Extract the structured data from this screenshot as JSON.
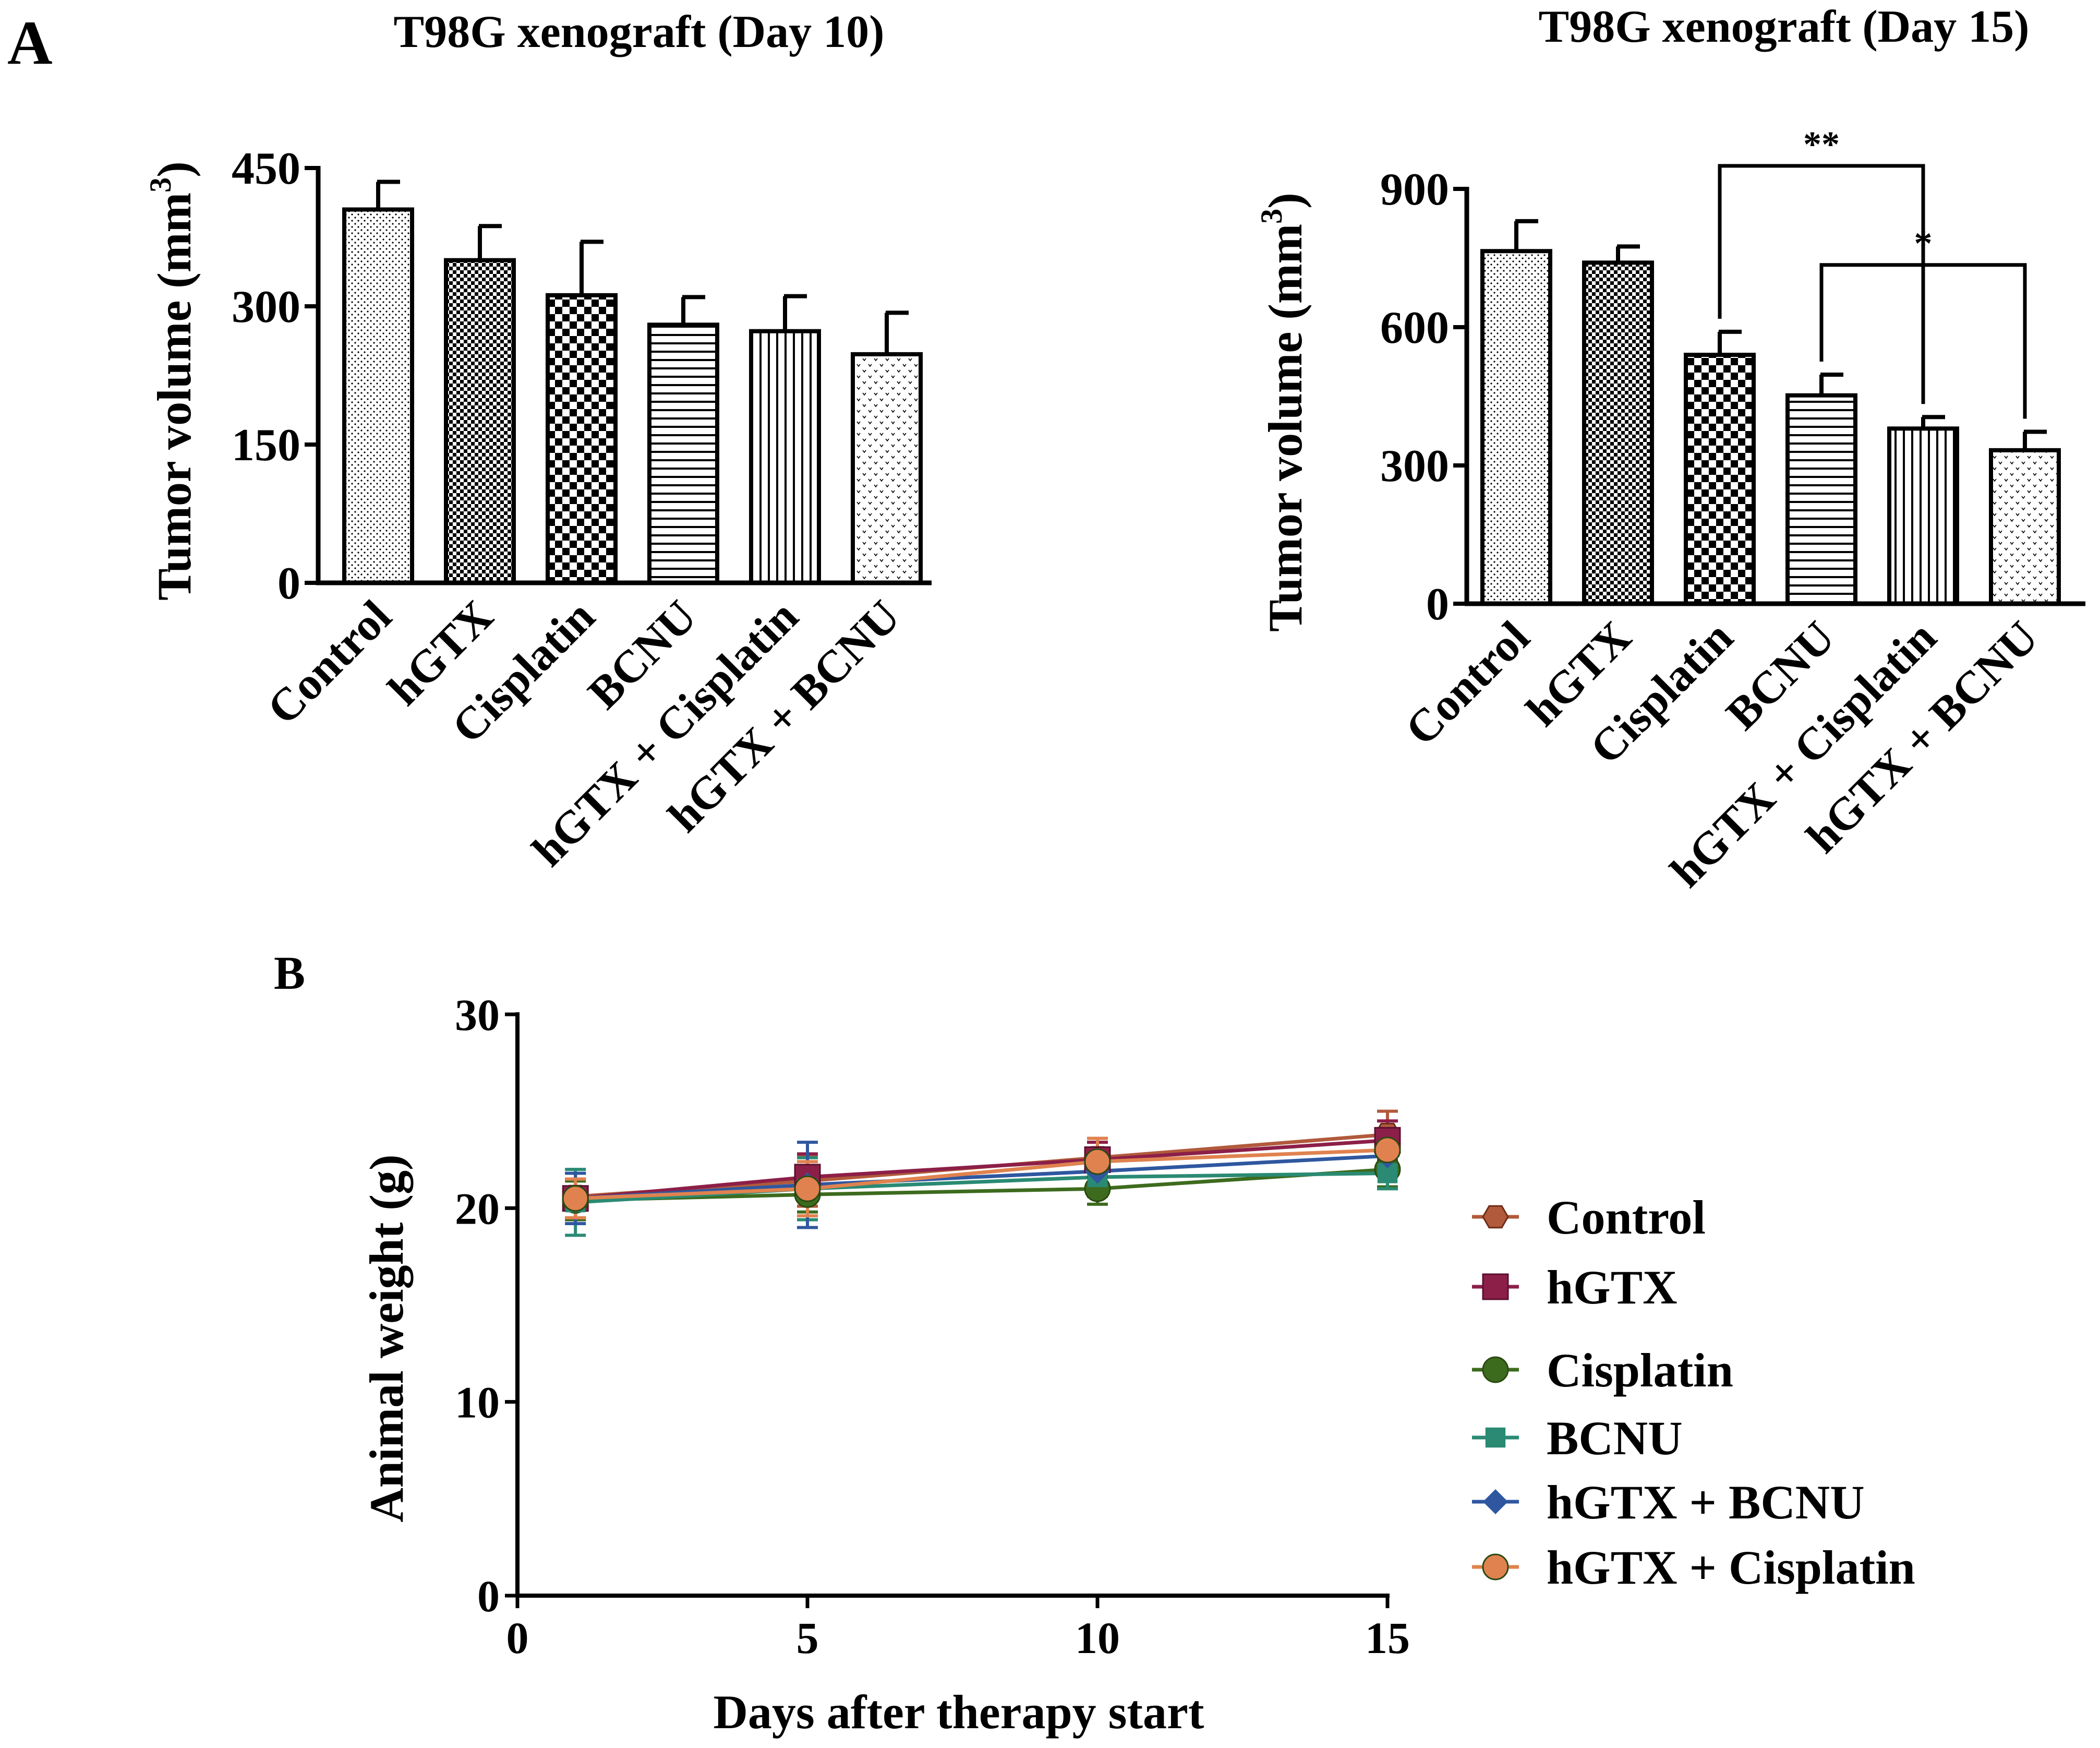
{
  "panel_labels": {
    "a": "A",
    "b": "B"
  },
  "patterns": [
    "dots",
    "checker-fine",
    "checker-coarse",
    "hlines",
    "vlines",
    "hearts"
  ],
  "chart_data": [
    {
      "id": "day10",
      "type": "bar",
      "title": "T98G xenograft (Day 10)",
      "ylabel": "Tumor volume (mm",
      "ylabel_sup": "3",
      "ylabel_close": ")",
      "ylim": [
        0,
        450
      ],
      "yticks": [
        0,
        150,
        300,
        450
      ],
      "categories": [
        "Control",
        "hGTX",
        "Cisplatin",
        "BCNU",
        "hGTX + Cisplatin",
        "hGTX + BCNU"
      ],
      "values": [
        405,
        350,
        312,
        280,
        273,
        248
      ],
      "errors": [
        30,
        37,
        58,
        30,
        38,
        45
      ],
      "brackets": []
    },
    {
      "id": "day15",
      "type": "bar",
      "title": "T98G xenograft (Day 15)",
      "ylabel": "Tumor volume (mm",
      "ylabel_sup": "3",
      "ylabel_close": ")",
      "ylim": [
        0,
        900
      ],
      "yticks": [
        0,
        300,
        600,
        900
      ],
      "categories": [
        "Control",
        "hGTX",
        "Cisplatin",
        "BCNU",
        "hGTX + Cisplatin",
        "hGTX + BCNU"
      ],
      "values": [
        765,
        740,
        540,
        452,
        380,
        333
      ],
      "errors": [
        65,
        35,
        50,
        45,
        25,
        40
      ],
      "brackets": [
        {
          "from": 2,
          "to": 4,
          "level": 950,
          "label": "**"
        },
        {
          "from": 3,
          "to": 5,
          "level": 735,
          "label": "*"
        }
      ]
    },
    {
      "id": "weight",
      "type": "line",
      "xlabel": "Days after therapy start",
      "ylabel": "Animal weight (g)",
      "xlim": [
        0,
        15
      ],
      "ylim": [
        0,
        30
      ],
      "xticks": [
        0,
        5,
        10,
        15
      ],
      "yticks": [
        0,
        10,
        20,
        30
      ],
      "x": [
        1,
        5,
        10,
        15
      ],
      "series": [
        {
          "name": "Control",
          "color": "#b15a3c",
          "marker": "hexagon",
          "values": [
            20.6,
            21.4,
            22.6,
            23.8
          ],
          "errors": [
            1.2,
            1.3,
            1.0,
            1.2
          ]
        },
        {
          "name": "hGTX",
          "color": "#8c1f48",
          "marker": "square",
          "values": [
            20.5,
            21.6,
            22.5,
            23.5
          ],
          "errors": [
            1.0,
            1.2,
            0.9,
            1.0
          ]
        },
        {
          "name": "Cisplatin",
          "color": "#3d6b1e",
          "marker": "circle",
          "values": [
            20.4,
            20.7,
            21.0,
            22.0
          ],
          "errors": [
            1.0,
            0.9,
            0.8,
            0.9
          ]
        },
        {
          "name": "BCNU",
          "color": "#2a8a73",
          "marker": "square-small",
          "values": [
            20.3,
            21.0,
            21.6,
            21.8
          ],
          "errors": [
            1.7,
            1.6,
            1.0,
            0.8
          ]
        },
        {
          "name": "hGTX + BCNU",
          "color": "#2f57a0",
          "marker": "diamond",
          "values": [
            20.5,
            21.2,
            21.9,
            22.7
          ],
          "errors": [
            1.3,
            2.2,
            0.9,
            0.9
          ]
        },
        {
          "name": "hGTX + Cisplatin",
          "color": "#e0824f",
          "marker": "circle",
          "values": [
            20.5,
            21.0,
            22.4,
            23.0
          ],
          "errors": [
            1.0,
            1.4,
            1.2,
            1.1
          ]
        }
      ]
    }
  ]
}
